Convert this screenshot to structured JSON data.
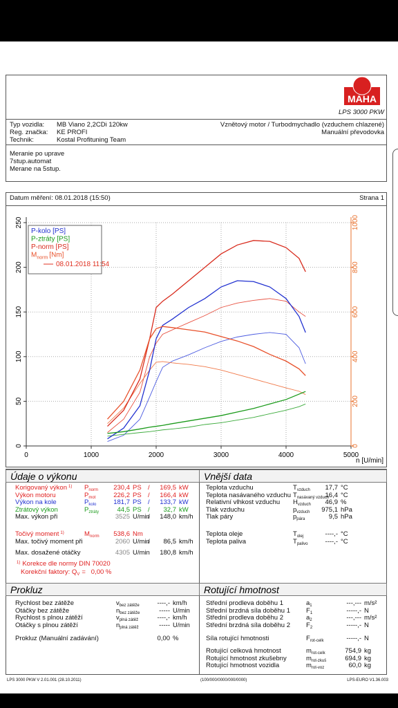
{
  "header": {
    "logo": "MAHA",
    "model": "LPS 3000 PKW"
  },
  "vehicle": {
    "rows": [
      [
        "Typ vozidla:",
        "MB Viano 2,2CDi 120kw"
      ],
      [
        "Reg. značka:",
        "KE PROFI"
      ],
      [
        "Technik:",
        "Kostal Profituning Team"
      ]
    ],
    "right": [
      "Vznětový motor / Turbodmychadlo (vzduchem chlazené)",
      "Manuální převodovka"
    ]
  },
  "notes": [
    "Meranie po uprave",
    "7stup.automat",
    "Merane na 5stup."
  ],
  "date_line": {
    "label": "Datum měření: 08.01.2018 (15:50)",
    "page": "Strana 1"
  },
  "chart_data": {
    "type": "line",
    "x": [
      1250,
      1500,
      1750,
      1900,
      2000,
      2100,
      2250,
      2500,
      2750,
      3000,
      3250,
      3500,
      3750,
      4000,
      4200,
      4300
    ],
    "xlim": [
      0,
      5000
    ],
    "xticks": [
      0,
      1000,
      2000,
      3000,
      4000,
      5000
    ],
    "xlabel": "n [U/min]",
    "ylim": [
      0,
      250
    ],
    "yticks": [
      0,
      50,
      100,
      150,
      200,
      250
    ],
    "y2lim": [
      0,
      1000
    ],
    "y2ticks": [
      0,
      200,
      400,
      600,
      800,
      1000
    ],
    "y2color": "#e8702c",
    "grid": true,
    "legend": "upper left",
    "series": [
      {
        "name": "P-kolo [PS]",
        "color": "#2030d0",
        "values": [
          8,
          20,
          45,
          85,
          120,
          135,
          142,
          155,
          165,
          178,
          185,
          184,
          178,
          165,
          145,
          127
        ]
      },
      {
        "name": "P-ztráty [PS]",
        "color": "#1a9a1a",
        "values": [
          14,
          16,
          19,
          21,
          22,
          23,
          25,
          28,
          31,
          34,
          38,
          42,
          47,
          52,
          58,
          61
        ]
      },
      {
        "name": "P-norm [PS]",
        "color": "#d82a1c",
        "values": [
          22,
          40,
          75,
          120,
          155,
          162,
          170,
          185,
          200,
          215,
          225,
          230,
          229,
          222,
          210,
          195
        ]
      },
      {
        "name": "M",
        "subscript": "norm",
        "unit": "[Nm]",
        "color": "#e8502a",
        "axis": "y2",
        "values": [
          120,
          200,
          340,
          480,
          525,
          535,
          530,
          520,
          510,
          490,
          470,
          445,
          410,
          380,
          345,
          315
        ]
      }
    ],
    "comparison": {
      "label": "08.01.2018 11:54",
      "color": "#e03020",
      "series": [
        {
          "color": "#4a5ae0",
          "values": [
            5,
            12,
            30,
            55,
            72,
            88,
            95,
            102,
            110,
            117,
            122,
            125,
            127,
            125,
            110,
            92
          ]
        },
        {
          "color": "#3aaa3a",
          "values": [
            11,
            13,
            15,
            16,
            17,
            18,
            19,
            21,
            24,
            26,
            29,
            32,
            36,
            40,
            44,
            47
          ]
        },
        {
          "color": "#e85040",
          "values": [
            15,
            30,
            60,
            100,
            115,
            125,
            130,
            138,
            146,
            155,
            160,
            163,
            165,
            162,
            150,
            145
          ]
        },
        {
          "color": "#f07848",
          "axis": "y2",
          "values": [
            100,
            170,
            280,
            340,
            375,
            378,
            372,
            365,
            355,
            340,
            320,
            300,
            280,
            260,
            245,
            230
          ]
        }
      ]
    }
  },
  "performance": {
    "title": "Údaje o výkonu",
    "rows": [
      {
        "label": "Korigovaný výkon",
        "note": "1)",
        "symbol": "P",
        "sub": "norm",
        "value": "230,4",
        "unit": "PS",
        "sep": "/",
        "value2": "169,5",
        "unit2": "kW",
        "color": "#e02020"
      },
      {
        "label": "Výkon motoru",
        "symbol": "P",
        "sub": "mot",
        "value": "226,2",
        "unit": "PS",
        "sep": "/",
        "value2": "166,4",
        "unit2": "kW",
        "color": "#e02020"
      },
      {
        "label": "Výkon na kole",
        "symbol": "P",
        "sub": "kolo",
        "value": "181,7",
        "unit": "PS",
        "sep": "/",
        "value2": "133,7",
        "unit2": "kW",
        "color": "#2030d0"
      },
      {
        "label": "Ztrátový výkon",
        "symbol": "P",
        "sub": "ztráty",
        "value": "44,5",
        "unit": "PS",
        "sep": "/",
        "value2": "32,7",
        "unit2": "kW",
        "color": "#1a9a1a"
      },
      {
        "label": "Max. výkon při",
        "value": "3525",
        "unit": "U/min",
        "sep": "/",
        "value2": "148,0",
        "unit2": "km/h",
        "value_color": "#888"
      },
      {
        "label": "Točivý moment",
        "note": "1)",
        "symbol": "M",
        "sub": "norm",
        "value": "538,6",
        "unit": "Nm",
        "color": "#e02020"
      },
      {
        "label": "Max. točivý moment při",
        "value": "2060",
        "unit": "U/min",
        "sep": "/",
        "value2": "86,5",
        "unit2": "km/h",
        "value_color": "#888"
      },
      {
        "label": "Max. dosažené otáčky",
        "value": "4305",
        "unit": "U/min",
        "value2": "180,8",
        "unit2": "km/h",
        "value_color": "#888"
      }
    ],
    "notes": [
      {
        "mark": "1)",
        "text": "Korekce dle normy DIN 70020"
      },
      {
        "text": "Korekční faktory: Q",
        "sub": "V",
        "rest": "=   0,00 %"
      }
    ]
  },
  "external": {
    "title": "Vnější data",
    "rows": [
      {
        "label": "Teplota vzduchu",
        "symbol": "T",
        "sub": "vzduch",
        "value": "17,7",
        "unit": "°C"
      },
      {
        "label": "Teplota nasávaného vzduchu",
        "symbol": "T",
        "sub": "nasávaný vzduch",
        "value": "16,4",
        "unit": "°C"
      },
      {
        "label": "Relativní vlhkost vzduchu",
        "symbol": "H",
        "sub": "vzduch",
        "value": "46,9",
        "unit": "%"
      },
      {
        "label": "Tlak vzduchu",
        "symbol": "p",
        "sub": "vzduch",
        "value": "975,1",
        "unit": "hPa"
      },
      {
        "label": "Tlak páry",
        "symbol": "p",
        "sub": "pára",
        "value": "9,5",
        "unit": "hPa"
      },
      {
        "label": "Teplota oleje",
        "symbol": "T",
        "sub": "olej",
        "value": "----,-",
        "unit": "°C"
      },
      {
        "label": "Teplota paliva",
        "symbol": "T",
        "sub": "palivo",
        "value": "----,-",
        "unit": "°C"
      }
    ]
  },
  "slip": {
    "title": "Prokluz",
    "rows": [
      {
        "label": "Rychlost bez zátěže",
        "symbol": "v",
        "sub": "bez zátěže",
        "value": "----,-",
        "unit": "km/h"
      },
      {
        "label": "Otáčky bez zátěže",
        "symbol": "n",
        "sub": "bez zátěže",
        "value": "-----",
        "unit": "U/min"
      },
      {
        "label": "Rychlost s plnou zátěží",
        "symbol": "v",
        "sub": "plná zátěž",
        "value": "----,-",
        "unit": "km/h"
      },
      {
        "label": "Otáčky s plnou zátěží",
        "symbol": "n",
        "sub": "plná zátěž",
        "value": "-----",
        "unit": "U/min"
      },
      {
        "label": "Prokluz (Manuální zadávání)",
        "value": "0,00",
        "unit": "%"
      }
    ]
  },
  "rotating": {
    "title": "Rotující hmotnost",
    "rows": [
      {
        "label": "Střední prodleva doběhu 1",
        "symbol": "a",
        "sub": "1",
        "value": "---,---",
        "unit": "m/s²"
      },
      {
        "label": "Střední brzdná síla doběhu 1",
        "symbol": "F",
        "sub": "1",
        "value": "-----,-",
        "unit": "N"
      },
      {
        "label": "Střední prodleva doběhu 2",
        "symbol": "a",
        "sub": "2",
        "value": "---,---",
        "unit": "m/s²"
      },
      {
        "label": "Střední brzdná síla doběhu 2",
        "symbol": "F",
        "sub": "2",
        "value": "-----,-",
        "unit": "N"
      },
      {
        "label": "Síla rotující hmotnosti",
        "symbol": "F",
        "sub": "rot-celk",
        "value": "-----,-",
        "unit": "N"
      },
      {
        "label": "Rotující celková hmotnost",
        "symbol": "m",
        "sub": "rot-celk",
        "value": "754,9",
        "unit": "kg"
      },
      {
        "label": "Rotující hmotnost zkušebny",
        "symbol": "m",
        "sub": "rot-zkuš",
        "value": "694,9",
        "unit": "kg"
      },
      {
        "label": "Rotující hmotnost vozidla",
        "symbol": "m",
        "sub": "rot-voz",
        "value": "60,0",
        "unit": "kg"
      }
    ]
  },
  "footer": [
    "LPS 3000 PKW V 2.01.001 (28.10.2011)",
    "(100/000/0000/000/0000)",
    "LPS-EURO V1.36.003"
  ]
}
